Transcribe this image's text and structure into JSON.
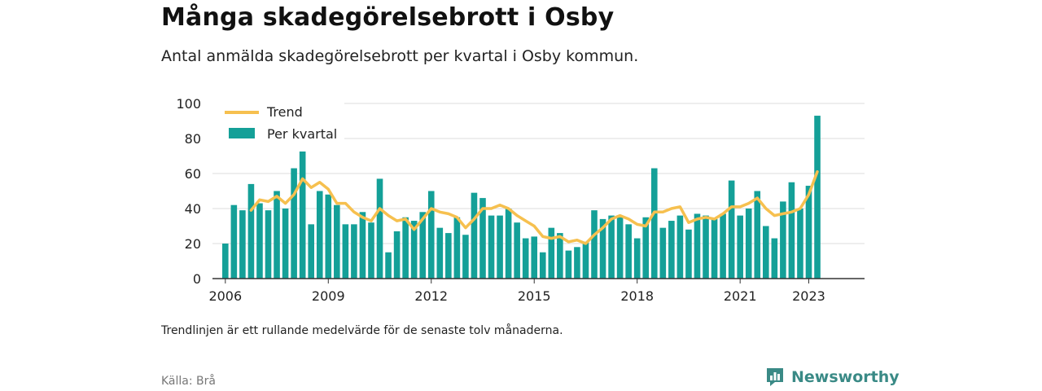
{
  "header": {
    "title": "Många skadegörelsebrott i Osby",
    "subtitle": "Antal anmälda skadegörelsebrott per kvartal i Osby kommun."
  },
  "footer": {
    "note": "Trendlinjen är ett rullande medelvärde för de senaste tolv månaderna.",
    "source": "Källa: Brå",
    "brand": "Newsworthy"
  },
  "colors": {
    "bars": "#14a098",
    "trend": "#f6c04f",
    "grid": "#dddddd",
    "axis": "#333333",
    "brand": "#3a8a86"
  },
  "chart_data": {
    "type": "bar",
    "x_label": "",
    "y_label": "",
    "ylim": [
      0,
      100
    ],
    "y_ticks": [
      0,
      20,
      40,
      60,
      80,
      100
    ],
    "x_tick_labels": [
      "2006",
      "2009",
      "2012",
      "2015",
      "2018",
      "2021",
      "2023"
    ],
    "x_tick_positions": [
      2006,
      2009,
      2012,
      2015,
      2018,
      2021,
      2023
    ],
    "x_range": [
      2005.625,
      2024.625
    ],
    "grid": true,
    "legend_position": "top-left",
    "x": [
      2006.0,
      2006.25,
      2006.5,
      2006.75,
      2007.0,
      2007.25,
      2007.5,
      2007.75,
      2008.0,
      2008.25,
      2008.5,
      2008.75,
      2009.0,
      2009.25,
      2009.5,
      2009.75,
      2010.0,
      2010.25,
      2010.5,
      2010.75,
      2011.0,
      2011.25,
      2011.5,
      2011.75,
      2012.0,
      2012.25,
      2012.5,
      2012.75,
      2013.0,
      2013.25,
      2013.5,
      2013.75,
      2014.0,
      2014.25,
      2014.5,
      2014.75,
      2015.0,
      2015.25,
      2015.5,
      2015.75,
      2016.0,
      2016.25,
      2016.5,
      2016.75,
      2017.0,
      2017.25,
      2017.5,
      2017.75,
      2018.0,
      2018.25,
      2018.5,
      2018.75,
      2019.0,
      2019.25,
      2019.5,
      2019.75,
      2020.0,
      2020.25,
      2020.5,
      2020.75,
      2021.0,
      2021.25,
      2021.5,
      2021.75,
      2022.0,
      2022.25,
      2022.5,
      2022.75,
      2023.0,
      2023.25
    ],
    "series": [
      {
        "name": "Per kvartal",
        "type": "bar",
        "values": [
          20,
          42,
          39,
          54,
          43,
          39,
          50,
          40,
          63,
          73,
          31,
          50,
          48,
          42,
          31,
          31,
          38,
          32,
          57,
          15,
          27,
          35,
          33,
          38,
          50,
          29,
          26,
          35,
          25,
          49,
          46,
          36,
          36,
          40,
          32,
          23,
          24,
          15,
          29,
          26,
          16,
          18,
          21,
          39,
          34,
          36,
          35,
          31,
          23,
          35,
          63,
          29,
          33,
          36,
          28,
          37,
          36,
          34,
          37,
          56,
          36,
          40,
          50,
          30,
          23,
          44,
          55,
          40,
          53,
          93
        ]
      },
      {
        "name": "Trend",
        "type": "line",
        "values": [
          null,
          null,
          null,
          39,
          45,
          44,
          47,
          43,
          48,
          57,
          52,
          55,
          51,
          43,
          43,
          38,
          35,
          33,
          40,
          36,
          33,
          34,
          28,
          34,
          40,
          38,
          37,
          35,
          29,
          34,
          40,
          40,
          42,
          40,
          36,
          33,
          30,
          24,
          23,
          24,
          21,
          22,
          20,
          25,
          29,
          34,
          36,
          34,
          31,
          30,
          38,
          38,
          40,
          41,
          32,
          34,
          35,
          34,
          37,
          41,
          41,
          43,
          46,
          40,
          36,
          37,
          38,
          40,
          48,
          61
        ]
      }
    ]
  }
}
